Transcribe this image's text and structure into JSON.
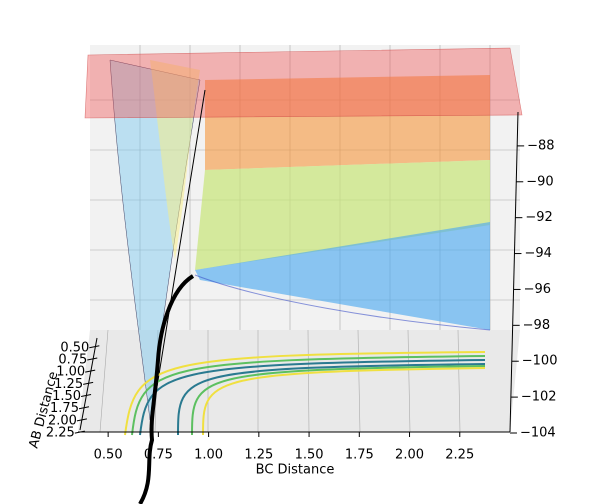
{
  "chart_data": {
    "type": "surface3d",
    "xlabel": "BC Distance",
    "ylabel": "AB Distance",
    "xlim": [
      0.35,
      2.5
    ],
    "xticks": [
      {
        "value": 0.5,
        "label": "0.50"
      },
      {
        "value": 0.75,
        "label": "0.75"
      },
      {
        "value": 1.0,
        "label": "1.00"
      },
      {
        "value": 1.25,
        "label": "1.25"
      },
      {
        "value": 1.5,
        "label": "1.50"
      },
      {
        "value": 1.75,
        "label": "1.75"
      },
      {
        "value": 2.0,
        "label": "2.00"
      },
      {
        "value": 2.25,
        "label": "2.25"
      }
    ],
    "ylim": [
      0.3,
      2.35
    ],
    "yticks": [
      {
        "value": 0.5,
        "label": "0.50"
      },
      {
        "value": 0.75,
        "label": "0.75"
      },
      {
        "value": 1.0,
        "label": "1.00"
      },
      {
        "value": 1.25,
        "label": "1.25"
      },
      {
        "value": 1.5,
        "label": "1.50"
      },
      {
        "value": 1.75,
        "label": "1.75"
      },
      {
        "value": 2.0,
        "label": "2.00"
      },
      {
        "value": 2.25,
        "label": "2.25"
      }
    ],
    "zlim": [
      -104,
      -86
    ],
    "zticks": [
      {
        "value": -88,
        "label": "−88"
      },
      {
        "value": -90,
        "label": "−90"
      },
      {
        "value": -92,
        "label": "−92"
      },
      {
        "value": -94,
        "label": "−94"
      },
      {
        "value": -96,
        "label": "−96"
      },
      {
        "value": -98,
        "label": "−98"
      },
      {
        "value": -100,
        "label": "−100"
      },
      {
        "value": -102,
        "label": "−102"
      },
      {
        "value": -104,
        "label": "−104"
      }
    ]
  }
}
